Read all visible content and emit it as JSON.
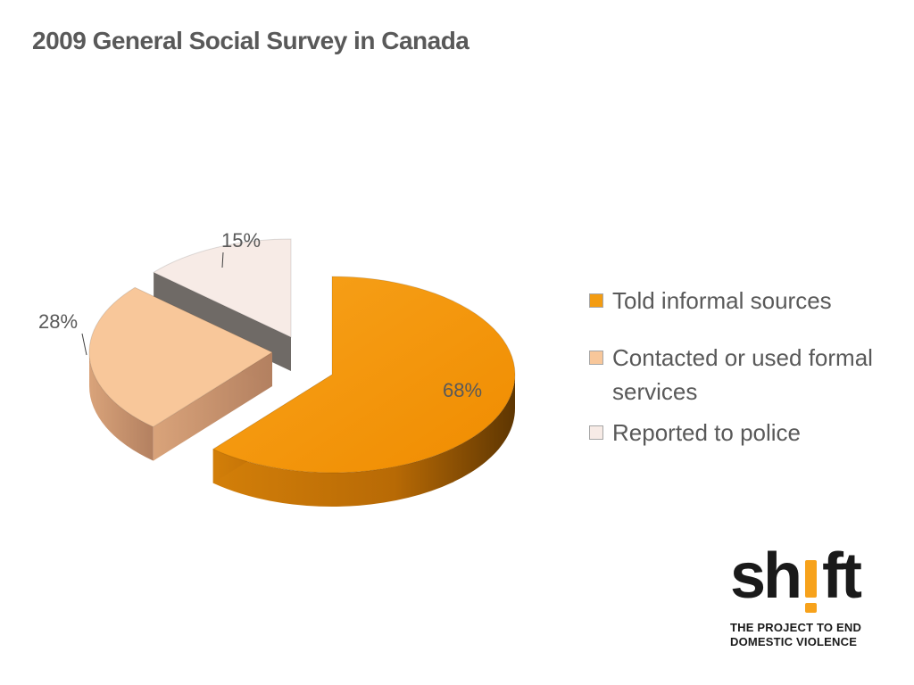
{
  "slide": {
    "title": "2009 General Social Survey in Canada"
  },
  "chart_data": {
    "type": "pie",
    "title": "",
    "categories": [
      "Told informal sources",
      "Contacted or used formal services",
      "Reported to police"
    ],
    "values": [
      68,
      28,
      15
    ],
    "labels": [
      "68%",
      "28%",
      "15%"
    ],
    "colors": [
      "#f39c12",
      "#f8c79a",
      "#f7ebe6"
    ],
    "legend_position": "right",
    "style": "3d-exploded"
  },
  "legend": {
    "items": [
      {
        "label": "Told informal sources",
        "color": "#f39c12"
      },
      {
        "label": "Contacted or used formal services",
        "color": "#f8c79a"
      },
      {
        "label": "Reported to police",
        "color": "#f7ebe6"
      }
    ]
  },
  "logo": {
    "word_part1": "sh",
    "word_part2": "ft",
    "accent_color": "#f7a21b",
    "tagline_line1": "THE PROJECT TO END",
    "tagline_line2": "DOMESTIC VIOLENCE"
  }
}
